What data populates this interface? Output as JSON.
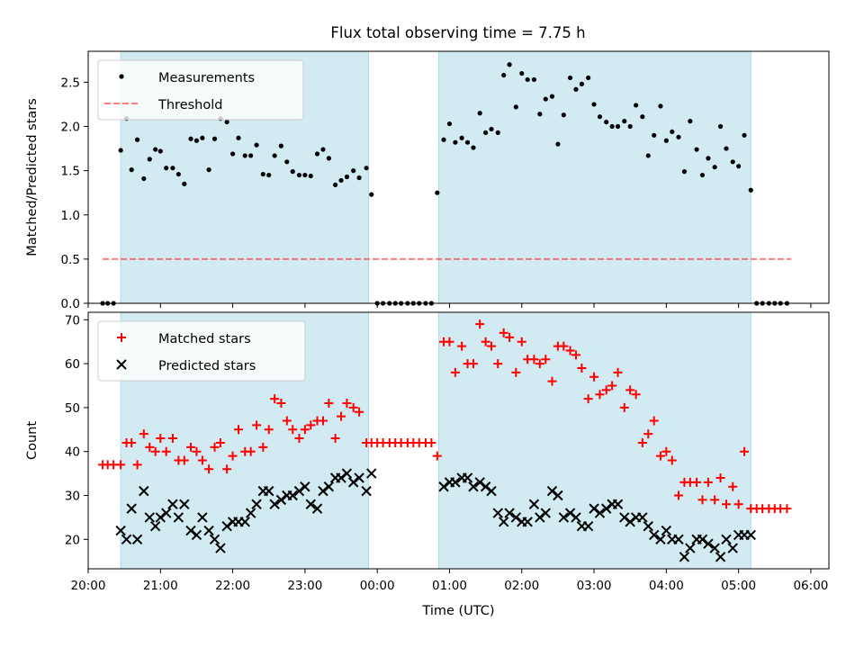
{
  "title": "Flux total observing time = 7.75 h",
  "colors": {
    "shade": "#add8e6",
    "measurement": "#000000",
    "threshold": "#ff0000",
    "matched": "#ff0000",
    "predicted": "#000000"
  },
  "chart_data": [
    {
      "type": "scatter",
      "panel": "top",
      "title": "Flux total observing time = 7.75 h",
      "xlabel": "",
      "ylabel": "Matched/Predicted stars",
      "xlim": [
        20.0,
        30.25
      ],
      "ylim": [
        0,
        2.85
      ],
      "yticks": [
        0.0,
        0.5,
        1.0,
        1.5,
        2.0,
        2.5
      ],
      "grid": false,
      "legend_position": "top-left",
      "shaded_intervals": [
        [
          20.45,
          23.88
        ],
        [
          24.85,
          29.17
        ]
      ],
      "threshold": {
        "name": "Threshold",
        "y": 0.5,
        "x_range": [
          20.2,
          29.73
        ],
        "style": "dashed"
      },
      "series": [
        {
          "name": "Measurements",
          "marker": "dot",
          "x": [
            20.2,
            20.27,
            20.35,
            20.45,
            20.53,
            20.6,
            20.68,
            20.77,
            20.85,
            20.93,
            21.0,
            21.08,
            21.17,
            21.25,
            21.33,
            21.42,
            21.5,
            21.58,
            21.67,
            21.75,
            21.83,
            21.92,
            22.0,
            22.08,
            22.17,
            22.25,
            22.33,
            22.42,
            22.5,
            22.58,
            22.67,
            22.75,
            22.83,
            22.92,
            23.0,
            23.08,
            23.17,
            23.25,
            23.33,
            23.42,
            23.5,
            23.58,
            23.67,
            23.75,
            23.85,
            23.92,
            24.0,
            24.08,
            24.17,
            24.25,
            24.33,
            24.42,
            24.5,
            24.58,
            24.67,
            24.75,
            24.83,
            24.92,
            25.0,
            25.08,
            25.17,
            25.25,
            25.33,
            25.42,
            25.5,
            25.58,
            25.67,
            25.75,
            25.83,
            25.92,
            26.0,
            26.08,
            26.17,
            26.25,
            26.33,
            26.42,
            26.5,
            26.58,
            26.67,
            26.75,
            26.83,
            26.92,
            27.0,
            27.08,
            27.17,
            27.25,
            27.33,
            27.42,
            27.5,
            27.58,
            27.67,
            27.75,
            27.83,
            27.92,
            28.0,
            28.08,
            28.17,
            28.25,
            28.33,
            28.42,
            28.5,
            28.58,
            28.67,
            28.75,
            28.83,
            28.92,
            29.0,
            29.08,
            29.17,
            29.25,
            29.33,
            29.42,
            29.5,
            29.58,
            29.67
          ],
          "y": [
            0.0,
            0.0,
            0.0,
            1.73,
            2.09,
            1.51,
            1.85,
            1.41,
            1.63,
            1.74,
            1.72,
            1.53,
            1.53,
            1.46,
            1.35,
            1.86,
            1.84,
            1.87,
            1.51,
            1.86,
            2.09,
            2.05,
            1.69,
            1.87,
            1.67,
            1.67,
            1.79,
            1.46,
            1.45,
            1.67,
            1.78,
            1.6,
            1.49,
            1.45,
            1.45,
            1.44,
            1.69,
            1.74,
            1.64,
            1.34,
            1.39,
            1.43,
            1.5,
            1.42,
            1.53,
            1.23,
            0.0,
            0.0,
            0.0,
            0.0,
            0.0,
            0.0,
            0.0,
            0.0,
            0.0,
            0.0,
            1.25,
            1.85,
            2.03,
            1.82,
            1.87,
            1.82,
            1.76,
            2.15,
            1.93,
            1.97,
            1.93,
            2.58,
            2.7,
            2.22,
            2.6,
            2.53,
            2.53,
            2.14,
            2.31,
            2.34,
            1.8,
            2.13,
            2.55,
            2.42,
            2.48,
            2.55,
            2.25,
            2.11,
            2.05,
            2.0,
            2.0,
            2.06,
            2.0,
            2.24,
            2.11,
            1.67,
            1.9,
            2.23,
            1.84,
            1.94,
            1.88,
            1.49,
            2.06,
            1.74,
            1.45,
            1.64,
            1.54,
            2.0,
            1.75,
            1.6,
            1.55,
            1.9,
            1.28,
            0.0,
            0.0,
            0.0,
            0.0,
            0.0,
            0.0
          ]
        }
      ]
    },
    {
      "type": "scatter",
      "panel": "bottom",
      "xlabel": "Time (UTC)",
      "ylabel": "Count",
      "xlim": [
        20.0,
        30.25
      ],
      "ylim": [
        13.3,
        71.7
      ],
      "yticks": [
        20,
        30,
        40,
        50,
        60,
        70
      ],
      "xticks": [
        20,
        21,
        22,
        23,
        24,
        25,
        26,
        27,
        28,
        29,
        30
      ],
      "xtick_labels": [
        "20:00",
        "21:00",
        "22:00",
        "23:00",
        "00:00",
        "01:00",
        "02:00",
        "03:00",
        "04:00",
        "05:00",
        "06:00"
      ],
      "grid": false,
      "legend_position": "top-left",
      "shaded_intervals": [
        [
          20.45,
          23.88
        ],
        [
          24.85,
          29.17
        ]
      ],
      "series": [
        {
          "name": "Matched stars",
          "marker": "plus",
          "x": [
            20.2,
            20.27,
            20.35,
            20.45,
            20.53,
            20.6,
            20.68,
            20.77,
            20.85,
            20.93,
            21.0,
            21.08,
            21.17,
            21.25,
            21.33,
            21.42,
            21.5,
            21.58,
            21.67,
            21.75,
            21.83,
            21.92,
            22.0,
            22.08,
            22.17,
            22.25,
            22.33,
            22.42,
            22.5,
            22.58,
            22.67,
            22.75,
            22.83,
            22.92,
            23.0,
            23.08,
            23.17,
            23.25,
            23.33,
            23.42,
            23.5,
            23.58,
            23.67,
            23.75,
            23.85,
            23.92,
            24.0,
            24.08,
            24.17,
            24.25,
            24.33,
            24.42,
            24.5,
            24.58,
            24.67,
            24.75,
            24.83,
            24.92,
            25.0,
            25.08,
            25.17,
            25.25,
            25.33,
            25.42,
            25.5,
            25.58,
            25.67,
            25.75,
            25.83,
            25.92,
            26.0,
            26.08,
            26.17,
            26.25,
            26.33,
            26.42,
            26.5,
            26.58,
            26.67,
            26.75,
            26.83,
            26.92,
            27.0,
            27.08,
            27.17,
            27.25,
            27.33,
            27.42,
            27.5,
            27.58,
            27.67,
            27.75,
            27.83,
            27.92,
            28.0,
            28.08,
            28.17,
            28.25,
            28.33,
            28.42,
            28.5,
            28.58,
            28.67,
            28.75,
            28.83,
            28.92,
            29.0,
            29.08,
            29.17,
            29.25,
            29.33,
            29.42,
            29.5,
            29.58,
            29.67
          ],
          "y": [
            37,
            37,
            37,
            37,
            42,
            42,
            37,
            44,
            41,
            40,
            43,
            40,
            43,
            38,
            38,
            41,
            40,
            38,
            36,
            41,
            42,
            36,
            39,
            45,
            40,
            40,
            46,
            41,
            45,
            52,
            51,
            47,
            45,
            43,
            45,
            46,
            47,
            47,
            51,
            43,
            48,
            51,
            50,
            49,
            42,
            42,
            42,
            42,
            42,
            42,
            42,
            42,
            42,
            42,
            42,
            42,
            39,
            65,
            65,
            58,
            64,
            60,
            60,
            69,
            65,
            64,
            60,
            67,
            66,
            58,
            65,
            61,
            61,
            60,
            61,
            56,
            64,
            64,
            63,
            62,
            59,
            52,
            57,
            53,
            54,
            55,
            58,
            50,
            54,
            53,
            42,
            44,
            47,
            39,
            40,
            38,
            30,
            33,
            33,
            33,
            29,
            33,
            29,
            34,
            28,
            32,
            28,
            40,
            27,
            27,
            27,
            27,
            27,
            27,
            27
          ]
        },
        {
          "name": "Predicted stars",
          "marker": "x",
          "x": [
            20.45,
            20.53,
            20.6,
            20.68,
            20.77,
            20.85,
            20.93,
            21.0,
            21.08,
            21.17,
            21.25,
            21.33,
            21.42,
            21.5,
            21.58,
            21.67,
            21.75,
            21.83,
            21.92,
            22.0,
            22.08,
            22.17,
            22.25,
            22.33,
            22.42,
            22.5,
            22.58,
            22.67,
            22.75,
            22.83,
            22.92,
            23.0,
            23.08,
            23.17,
            23.25,
            23.33,
            23.42,
            23.5,
            23.58,
            23.67,
            23.75,
            23.85,
            23.92,
            24.92,
            25.0,
            25.08,
            25.17,
            25.25,
            25.33,
            25.42,
            25.5,
            25.58,
            25.67,
            25.75,
            25.83,
            25.92,
            26.0,
            26.08,
            26.17,
            26.25,
            26.33,
            26.42,
            26.5,
            26.58,
            26.67,
            26.75,
            26.83,
            26.92,
            27.0,
            27.08,
            27.17,
            27.25,
            27.33,
            27.42,
            27.5,
            27.58,
            27.67,
            27.75,
            27.83,
            27.92,
            28.0,
            28.08,
            28.17,
            28.25,
            28.33,
            28.42,
            28.5,
            28.58,
            28.67,
            28.75,
            28.83,
            28.92,
            29.0,
            29.08,
            29.17
          ],
          "y": [
            22,
            20,
            27,
            20,
            31,
            25,
            23,
            25,
            26,
            28,
            25,
            28,
            22,
            21,
            25,
            22,
            20,
            18,
            23,
            24,
            24,
            24,
            26,
            28,
            31,
            31,
            28,
            29,
            30,
            30,
            31,
            32,
            28,
            27,
            31,
            32,
            34,
            34,
            35,
            33,
            34,
            31,
            35,
            32,
            33,
            33,
            34,
            34,
            32,
            33,
            32,
            31,
            26,
            24,
            26,
            25,
            24,
            24,
            28,
            25,
            26,
            31,
            30,
            25,
            26,
            25,
            23,
            23,
            27,
            26,
            27,
            28,
            28,
            25,
            24,
            25,
            25,
            23,
            21,
            20,
            22,
            20,
            20,
            16,
            18,
            20,
            20,
            19,
            18,
            16,
            20,
            18,
            21,
            21,
            21
          ]
        }
      ]
    }
  ]
}
